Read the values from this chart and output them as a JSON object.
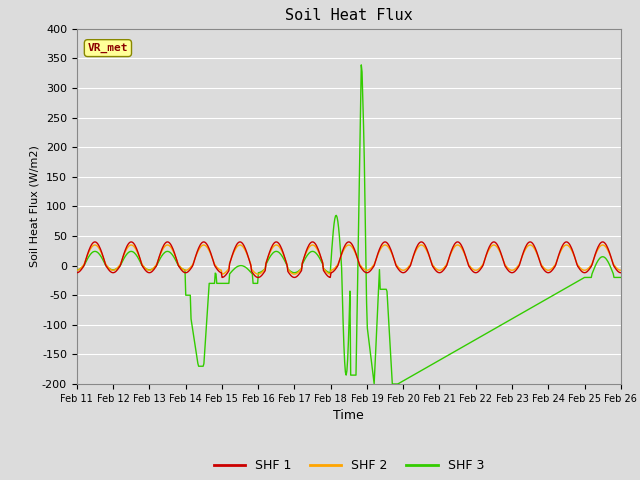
{
  "title": "Soil Heat Flux",
  "xlabel": "Time",
  "ylabel": "Soil Heat Flux (W/m2)",
  "ylim": [
    -200,
    400
  ],
  "yticks": [
    -200,
    -150,
    -100,
    -50,
    0,
    50,
    100,
    150,
    200,
    250,
    300,
    350,
    400
  ],
  "x_labels": [
    "Feb 11",
    "Feb 12",
    "Feb 13",
    "Feb 14",
    "Feb 15",
    "Feb 16",
    "Feb 17",
    "Feb 18",
    "Feb 19",
    "Feb 20",
    "Feb 21",
    "Feb 22",
    "Feb 23",
    "Feb 24",
    "Feb 25",
    "Feb 26"
  ],
  "colors": {
    "SHF1": "#cc0000",
    "SHF2": "#ffa500",
    "SHF3": "#33cc00",
    "background": "#dcdcdc",
    "grid": "#ffffff",
    "fig_bg": "#dcdcdc",
    "vr_met_bg": "#ffff99",
    "vr_met_border": "#cc9900",
    "vr_met_text": "#8b0000"
  },
  "legend_labels": [
    "SHF 1",
    "SHF 2",
    "SHF 3"
  ],
  "vr_met_label": "VR_met",
  "line_width": 1.0,
  "days": 15,
  "pts_per_day": 48
}
